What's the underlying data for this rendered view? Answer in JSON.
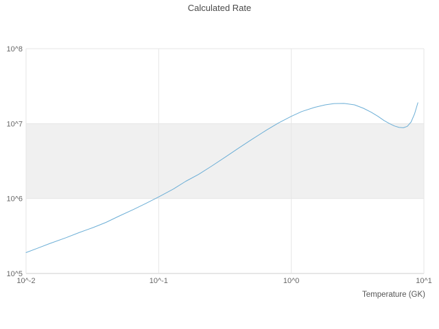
{
  "title": "Calculated Rate",
  "x_axis": {
    "label": "Temperature (GK)",
    "ticks": [
      "10^-2",
      "10^-1",
      "10^0",
      "10^1"
    ]
  },
  "y_axis": {
    "ticks": [
      "10^5",
      "10^6",
      "10^7",
      "10^8"
    ]
  },
  "colors": {
    "line": "#6baed6",
    "band": "#f0f0f0",
    "grid": "#e6e6e6",
    "axis": "#cccccc",
    "text": "#666666"
  },
  "chart_data": {
    "type": "line",
    "title": "Calculated Rate",
    "xlabel": "Temperature (GK)",
    "ylabel": "",
    "x_scale": "log",
    "y_scale": "log",
    "xlim": [
      0.01,
      10
    ],
    "ylim": [
      100000,
      100000000
    ],
    "grid": true,
    "band_y": [
      1000000,
      10000000
    ],
    "x": [
      0.01,
      0.012,
      0.015,
      0.02,
      0.025,
      0.032,
      0.04,
      0.05,
      0.065,
      0.08,
      0.1,
      0.13,
      0.16,
      0.2,
      0.25,
      0.32,
      0.4,
      0.5,
      0.65,
      0.8,
      1.0,
      1.2,
      1.5,
      1.8,
      2.1,
      2.5,
      3.0,
      3.5,
      4.0,
      4.5,
      5.0,
      5.5,
      6.0,
      6.5,
      7.0,
      7.5,
      8.0,
      8.5,
      9.0
    ],
    "series": [
      {
        "name": "Calculated Rate",
        "values": [
          190000,
          215000,
          250000,
          300000,
          350000,
          410000,
          480000,
          580000,
          720000,
          860000,
          1050000,
          1350000,
          1700000,
          2100000,
          2700000,
          3600000,
          4700000,
          6100000,
          8200000,
          10200000,
          12500000,
          14500000,
          16500000,
          17800000,
          18500000,
          18600000,
          17800000,
          16000000,
          14200000,
          12500000,
          11000000,
          10000000,
          9300000,
          8900000,
          8800000,
          9200000,
          10500000,
          13500000,
          19000000
        ]
      }
    ]
  }
}
